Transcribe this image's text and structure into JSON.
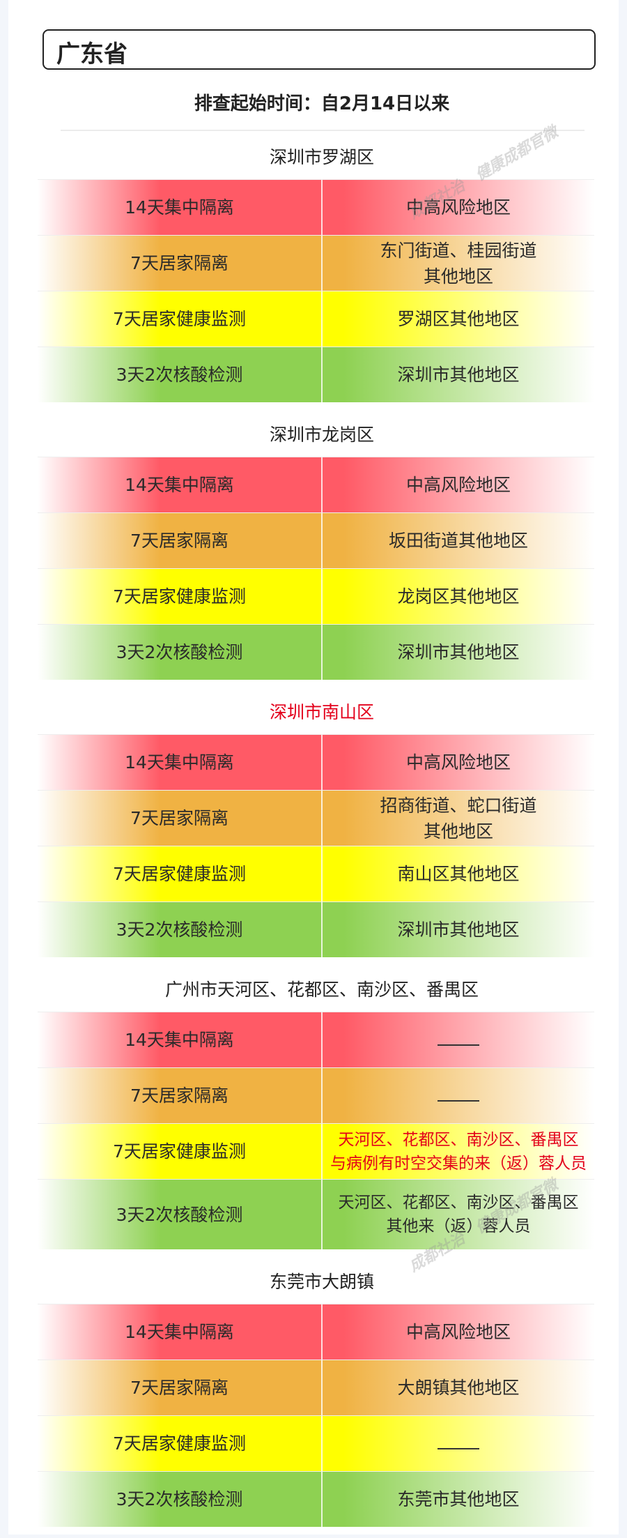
{
  "title": "广东省",
  "subtitle": "排查起始时间：自2月14日以来",
  "colors": {
    "red": "#ff5a66",
    "orange": "#f0b243",
    "yellow": "#ffff00",
    "green": "#8ed152",
    "highlight_text": "#e3001b"
  },
  "watermarks": [
    "成都社治",
    "健康成都官微"
  ],
  "sections": [
    {
      "header": "深圳市罗湖区",
      "header_red": false,
      "rows": [
        {
          "measure": "14天集中隔离",
          "area": [
            "中高风险地区"
          ]
        },
        {
          "measure": "7天居家隔离",
          "area": [
            "东门街道、桂园街道",
            "其他地区"
          ]
        },
        {
          "measure": "7天居家健康监测",
          "area": [
            "罗湖区其他地区"
          ]
        },
        {
          "measure": "3天2次核酸检测",
          "area": [
            "深圳市其他地区"
          ]
        }
      ]
    },
    {
      "header": "深圳市龙岗区",
      "header_red": false,
      "rows": [
        {
          "measure": "14天集中隔离",
          "area": [
            "中高风险地区"
          ]
        },
        {
          "measure": "7天居家隔离",
          "area": [
            "坂田街道其他地区"
          ]
        },
        {
          "measure": "7天居家健康监测",
          "area": [
            "龙岗区其他地区"
          ]
        },
        {
          "measure": "3天2次核酸检测",
          "area": [
            "深圳市其他地区"
          ]
        }
      ]
    },
    {
      "header": "深圳市南山区",
      "header_red": true,
      "rows": [
        {
          "measure": "14天集中隔离",
          "area": [
            "中高风险地区"
          ]
        },
        {
          "measure": "7天居家隔离",
          "area": [
            "招商街道、蛇口街道",
            "其他地区"
          ]
        },
        {
          "measure": "7天居家健康监测",
          "area": [
            "南山区其他地区"
          ]
        },
        {
          "measure": "3天2次核酸检测",
          "area": [
            "深圳市其他地区"
          ]
        }
      ]
    },
    {
      "header": "广州市天河区、花都区、南沙区、番禺区",
      "header_red": false,
      "rows": [
        {
          "measure": "14天集中隔离",
          "area": [
            "——"
          ]
        },
        {
          "measure": "7天居家隔离",
          "area": [
            "——"
          ]
        },
        {
          "measure": "7天居家健康监测",
          "area": [
            "天河区、花都区、南沙区、番禺区",
            "与病例有时空交集的来（返）蓉人员"
          ],
          "area_red": true
        },
        {
          "measure": "3天2次核酸检测",
          "area": [
            "天河区、花都区、南沙区、番禺区",
            "其他来（返）蓉人员"
          ],
          "tall": true
        }
      ]
    },
    {
      "header": "东莞市大朗镇",
      "header_red": false,
      "rows": [
        {
          "measure": "14天集中隔离",
          "area": [
            "中高风险地区"
          ]
        },
        {
          "measure": "7天居家隔离",
          "area": [
            "大朗镇其他地区"
          ]
        },
        {
          "measure": "7天居家健康监测",
          "area": [
            "——"
          ]
        },
        {
          "measure": "3天2次核酸检测",
          "area": [
            "东莞市其他地区"
          ]
        }
      ]
    }
  ]
}
